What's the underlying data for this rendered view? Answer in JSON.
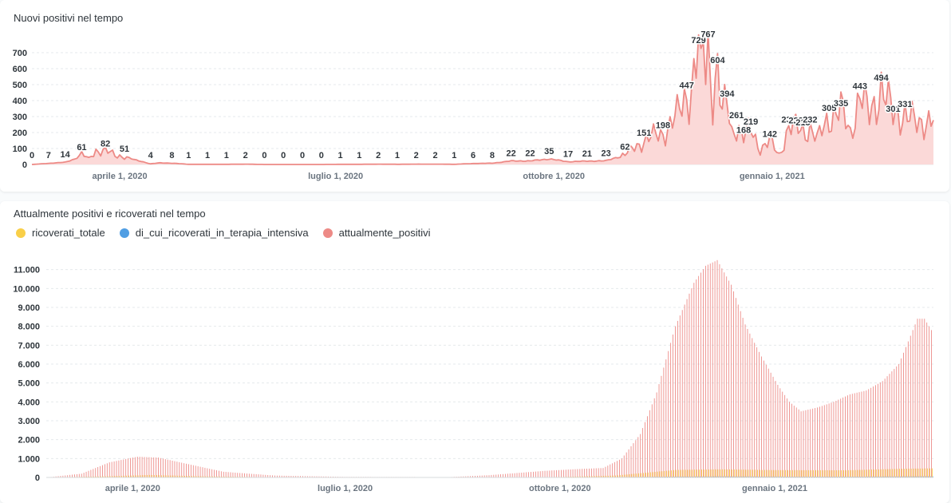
{
  "chart_data": [
    {
      "type": "area",
      "title": "Nuovi positivi nel tempo",
      "color": "#ed8a86",
      "fill": "#fbd9d8",
      "y_ticks": [
        "0",
        "100",
        "200",
        "300",
        "400",
        "500",
        "600",
        "700"
      ],
      "ylim": [
        0,
        800
      ],
      "x_range": [
        "2020-02-24",
        "2021-03-10"
      ],
      "x_ticks": [
        {
          "date": "2020-04-01",
          "label": "aprile 1, 2020"
        },
        {
          "date": "2020-07-01",
          "label": "luglio 1, 2020"
        },
        {
          "date": "2020-10-01",
          "label": "ottobre 1, 2020"
        },
        {
          "date": "2021-01-01",
          "label": "gennaio 1, 2021"
        }
      ],
      "x_label": "",
      "y_label": "",
      "grid": "horizontal dashed",
      "series": [
        {
          "points": [
            [
              "2020-02-24",
              0
            ],
            [
              "2020-03-02",
              7
            ],
            [
              "2020-03-09",
              14
            ],
            [
              "2020-03-13",
              35
            ],
            [
              "2020-03-16",
              61
            ],
            [
              "2020-03-19",
              40
            ],
            [
              "2020-03-22",
              90
            ],
            [
              "2020-03-26",
              82
            ],
            [
              "2020-03-30",
              60
            ],
            [
              "2020-04-03",
              51
            ],
            [
              "2020-04-07",
              30
            ],
            [
              "2020-04-10",
              20
            ],
            [
              "2020-04-14",
              4
            ],
            [
              "2020-04-18",
              10
            ],
            [
              "2020-04-23",
              8
            ],
            [
              "2020-04-30",
              1
            ],
            [
              "2020-05-08",
              1
            ],
            [
              "2020-05-16",
              1
            ],
            [
              "2020-05-24",
              2
            ],
            [
              "2020-06-01",
              0
            ],
            [
              "2020-06-09",
              0
            ],
            [
              "2020-06-17",
              0
            ],
            [
              "2020-06-25",
              0
            ],
            [
              "2020-07-03",
              1
            ],
            [
              "2020-07-11",
              1
            ],
            [
              "2020-07-19",
              2
            ],
            [
              "2020-07-27",
              1
            ],
            [
              "2020-08-04",
              2
            ],
            [
              "2020-08-12",
              2
            ],
            [
              "2020-08-20",
              1
            ],
            [
              "2020-08-28",
              6
            ],
            [
              "2020-09-05",
              8
            ],
            [
              "2020-09-13",
              22
            ],
            [
              "2020-09-21",
              22
            ],
            [
              "2020-09-29",
              35
            ],
            [
              "2020-10-07",
              17
            ],
            [
              "2020-10-15",
              21
            ],
            [
              "2020-10-23",
              23
            ],
            [
              "2020-10-31",
              62
            ],
            [
              "2020-11-08",
              151
            ],
            [
              "2020-11-16",
              198
            ],
            [
              "2020-11-22",
              300
            ],
            [
              "2020-11-26",
              447
            ],
            [
              "2020-11-28",
              480
            ],
            [
              "2020-12-01",
              729
            ],
            [
              "2020-12-02",
              500
            ],
            [
              "2020-12-03",
              767
            ],
            [
              "2020-12-04",
              600
            ],
            [
              "2020-12-05",
              767
            ],
            [
              "2020-12-07",
              450
            ],
            [
              "2020-12-09",
              604
            ],
            [
              "2020-12-11",
              300
            ],
            [
              "2020-12-13",
              394
            ],
            [
              "2020-12-15",
              200
            ],
            [
              "2020-12-17",
              261
            ],
            [
              "2020-12-20",
              168
            ],
            [
              "2020-12-23",
              219
            ],
            [
              "2020-12-27",
              100
            ],
            [
              "2020-12-31",
              142
            ],
            [
              "2021-01-04",
              60
            ],
            [
              "2021-01-08",
              232
            ],
            [
              "2021-01-11",
              228
            ],
            [
              "2021-01-14",
              215
            ],
            [
              "2021-01-17",
              232
            ],
            [
              "2021-01-20",
              150
            ],
            [
              "2021-01-25",
              305
            ],
            [
              "2021-01-30",
              335
            ],
            [
              "2021-02-03",
              200
            ],
            [
              "2021-02-07",
              443
            ],
            [
              "2021-02-11",
              300
            ],
            [
              "2021-02-16",
              494
            ],
            [
              "2021-02-21",
              301
            ],
            [
              "2021-02-26",
              331
            ],
            [
              "2021-03-03",
              240
            ],
            [
              "2021-03-07",
              290
            ]
          ]
        }
      ],
      "data_labels": [
        {
          "date": "2020-02-24",
          "value": 0
        },
        {
          "date": "2020-03-02",
          "value": 7
        },
        {
          "date": "2020-03-09",
          "value": 14
        },
        {
          "date": "2020-03-16",
          "value": 61
        },
        {
          "date": "2020-03-26",
          "value": 82
        },
        {
          "date": "2020-04-03",
          "value": 51
        },
        {
          "date": "2020-04-14",
          "value": 4
        },
        {
          "date": "2020-04-23",
          "value": 8
        },
        {
          "date": "2020-04-30",
          "value": 1
        },
        {
          "date": "2020-05-08",
          "value": 1
        },
        {
          "date": "2020-05-16",
          "value": 1
        },
        {
          "date": "2020-05-24",
          "value": 2
        },
        {
          "date": "2020-06-01",
          "value": 0
        },
        {
          "date": "2020-06-09",
          "value": 0
        },
        {
          "date": "2020-06-17",
          "value": 0
        },
        {
          "date": "2020-06-25",
          "value": 0
        },
        {
          "date": "2020-07-03",
          "value": 1
        },
        {
          "date": "2020-07-11",
          "value": 1
        },
        {
          "date": "2020-07-19",
          "value": 2
        },
        {
          "date": "2020-07-27",
          "value": 1
        },
        {
          "date": "2020-08-04",
          "value": 2
        },
        {
          "date": "2020-08-12",
          "value": 2
        },
        {
          "date": "2020-08-20",
          "value": 1
        },
        {
          "date": "2020-08-28",
          "value": 6
        },
        {
          "date": "2020-09-05",
          "value": 8
        },
        {
          "date": "2020-09-13",
          "value": 22
        },
        {
          "date": "2020-09-21",
          "value": 22
        },
        {
          "date": "2020-09-29",
          "value": 35
        },
        {
          "date": "2020-10-07",
          "value": 17
        },
        {
          "date": "2020-10-15",
          "value": 21
        },
        {
          "date": "2020-10-23",
          "value": 23
        },
        {
          "date": "2020-10-31",
          "value": 62
        },
        {
          "date": "2020-11-08",
          "value": 151
        },
        {
          "date": "2020-11-16",
          "value": 198
        },
        {
          "date": "2020-11-26",
          "value": 447
        },
        {
          "date": "2020-12-01",
          "value": 729
        },
        {
          "date": "2020-12-05",
          "value": 767
        },
        {
          "date": "2020-12-09",
          "value": 604
        },
        {
          "date": "2020-12-13",
          "value": 394
        },
        {
          "date": "2020-12-17",
          "value": 261
        },
        {
          "date": "2020-12-20",
          "value": 168
        },
        {
          "date": "2020-12-23",
          "value": 219
        },
        {
          "date": "2020-12-31",
          "value": 142
        },
        {
          "date": "2021-01-08",
          "value": 232
        },
        {
          "date": "2021-01-11",
          "value": 228
        },
        {
          "date": "2021-01-14",
          "value": 215
        },
        {
          "date": "2021-01-17",
          "value": 232
        },
        {
          "date": "2021-01-25",
          "value": 305
        },
        {
          "date": "2021-01-30",
          "value": 335
        },
        {
          "date": "2021-02-07",
          "value": 443
        },
        {
          "date": "2021-02-16",
          "value": 494
        },
        {
          "date": "2021-02-21",
          "value": 301
        },
        {
          "date": "2021-02-26",
          "value": 331
        }
      ]
    },
    {
      "type": "bar",
      "title": "Attualmente positivi e ricoverati nel tempo",
      "y_ticks": [
        "0",
        "1.000",
        "2.000",
        "3.000",
        "4.000",
        "5.000",
        "6.000",
        "7.000",
        "8.000",
        "9.000",
        "10.000",
        "11.000"
      ],
      "ylim": [
        0,
        12000
      ],
      "x_range": [
        "2020-02-24",
        "2021-03-10"
      ],
      "x_ticks": [
        {
          "date": "2020-04-01",
          "label": "aprile 1, 2020"
        },
        {
          "date": "2020-07-01",
          "label": "luglio 1, 2020"
        },
        {
          "date": "2020-10-01",
          "label": "ottobre 1, 2020"
        },
        {
          "date": "2021-01-01",
          "label": "gennaio 1, 2021"
        }
      ],
      "x_label": "",
      "y_label": "",
      "grid": "horizontal dashed",
      "legend_position": "top-left",
      "series": [
        {
          "name": "ricoverati_totale",
          "color": "#f9cf48",
          "points": [
            [
              "2020-02-24",
              0
            ],
            [
              "2020-03-20",
              60
            ],
            [
              "2020-04-08",
              130
            ],
            [
              "2020-05-01",
              60
            ],
            [
              "2020-06-01",
              10
            ],
            [
              "2020-07-01",
              3
            ],
            [
              "2020-09-01",
              5
            ],
            [
              "2020-10-01",
              25
            ],
            [
              "2020-10-25",
              100
            ],
            [
              "2020-11-20",
              400
            ],
            [
              "2020-12-10",
              430
            ],
            [
              "2021-01-01",
              390
            ],
            [
              "2021-02-01",
              380
            ],
            [
              "2021-02-25",
              460
            ],
            [
              "2021-03-10",
              480
            ]
          ]
        },
        {
          "name": "di_cui_ricoverati_in_terapia_intensiva",
          "color": "#509ee3",
          "points": [
            [
              "2020-02-24",
              0
            ],
            [
              "2020-04-01",
              25
            ],
            [
              "2020-05-01",
              10
            ],
            [
              "2020-06-01",
              2
            ],
            [
              "2020-10-01",
              3
            ],
            [
              "2020-11-20",
              45
            ],
            [
              "2020-12-10",
              55
            ],
            [
              "2021-01-01",
              45
            ],
            [
              "2021-02-01",
              40
            ],
            [
              "2021-03-10",
              60
            ]
          ]
        },
        {
          "name": "attualmente_positivi",
          "color": "#ed8a86",
          "points": [
            [
              "2020-02-24",
              0
            ],
            [
              "2020-03-10",
              200
            ],
            [
              "2020-03-22",
              800
            ],
            [
              "2020-04-03",
              1100
            ],
            [
              "2020-04-12",
              1050
            ],
            [
              "2020-04-25",
              700
            ],
            [
              "2020-05-10",
              300
            ],
            [
              "2020-06-01",
              100
            ],
            [
              "2020-07-01",
              30
            ],
            [
              "2020-08-15",
              20
            ],
            [
              "2020-09-01",
              120
            ],
            [
              "2020-09-25",
              350
            ],
            [
              "2020-10-10",
              450
            ],
            [
              "2020-10-20",
              500
            ],
            [
              "2020-10-28",
              1000
            ],
            [
              "2020-11-05",
              2300
            ],
            [
              "2020-11-12",
              4500
            ],
            [
              "2020-11-20",
              8000
            ],
            [
              "2020-11-28",
              10300
            ],
            [
              "2020-12-03",
              11200
            ],
            [
              "2020-12-08",
              11500
            ],
            [
              "2020-12-14",
              10200
            ],
            [
              "2020-12-20",
              8100
            ],
            [
              "2020-12-27",
              6400
            ],
            [
              "2021-01-03",
              4900
            ],
            [
              "2021-01-08",
              4000
            ],
            [
              "2021-01-13",
              3500
            ],
            [
              "2021-01-20",
              3700
            ],
            [
              "2021-01-27",
              4000
            ],
            [
              "2021-02-03",
              4400
            ],
            [
              "2021-02-10",
              4600
            ],
            [
              "2021-02-17",
              5100
            ],
            [
              "2021-02-24",
              6000
            ],
            [
              "2021-03-01",
              7500
            ],
            [
              "2021-03-04",
              8400
            ],
            [
              "2021-03-07",
              8400
            ],
            [
              "2021-03-10",
              7800
            ]
          ]
        }
      ]
    }
  ]
}
